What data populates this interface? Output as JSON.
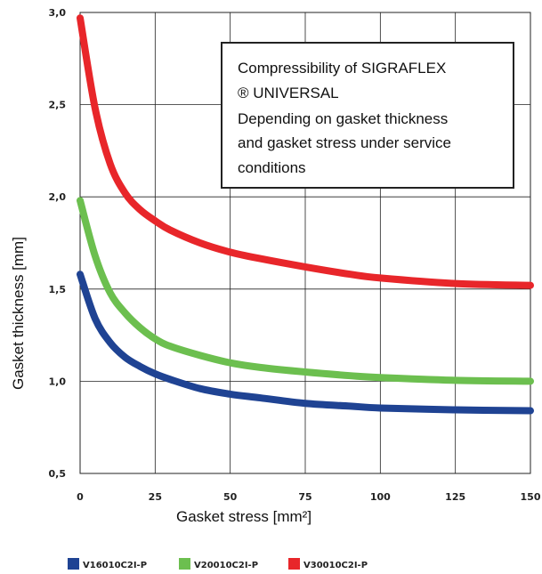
{
  "chart_data": {
    "type": "line",
    "title": "",
    "xlabel": "Gasket stress [mm²]",
    "ylabel": "Gasket thickness [mm]",
    "xlim": [
      0,
      150
    ],
    "ylim": [
      0.5,
      3.0
    ],
    "xticks": [
      "0",
      "25",
      "50",
      "75",
      "100",
      "125",
      "150"
    ],
    "yticks": [
      "0,5",
      "1,0",
      "1,5",
      "2,0",
      "2,5",
      "3,0"
    ],
    "grid": true,
    "legend_position": "bottom",
    "annotation": {
      "lines": [
        "Compressibility of SIGRAFLEX",
        "® UNIVERSAL",
        "Depending on gasket thickness",
        "and gasket stress under service",
        "conditions"
      ]
    },
    "x": [
      0,
      5,
      10,
      15,
      20,
      25,
      30,
      40,
      50,
      60,
      75,
      90,
      100,
      125,
      150
    ],
    "series": [
      {
        "name": "V16010C2I-P",
        "color": "#1f4393",
        "values": [
          1.58,
          1.34,
          1.21,
          1.13,
          1.08,
          1.04,
          1.01,
          0.96,
          0.93,
          0.91,
          0.88,
          0.865,
          0.855,
          0.845,
          0.84
        ]
      },
      {
        "name": "V20010C2I-P",
        "color": "#6cbf4f",
        "values": [
          1.98,
          1.68,
          1.48,
          1.37,
          1.29,
          1.23,
          1.19,
          1.14,
          1.1,
          1.075,
          1.05,
          1.03,
          1.02,
          1.005,
          1.0
        ]
      },
      {
        "name": "V30010C2I-P",
        "color": "#e8262a",
        "values": [
          2.97,
          2.48,
          2.18,
          2.02,
          1.93,
          1.87,
          1.82,
          1.75,
          1.7,
          1.665,
          1.62,
          1.58,
          1.56,
          1.53,
          1.52
        ]
      }
    ]
  }
}
